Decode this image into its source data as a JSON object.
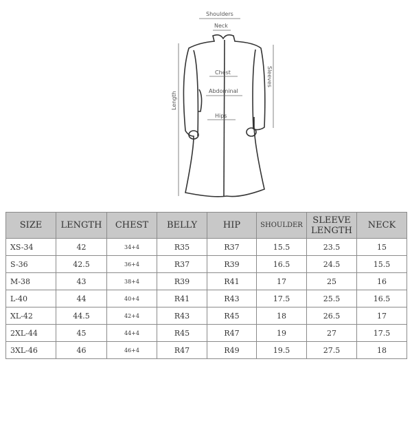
{
  "diagram": {
    "labels": {
      "shoulders": "Shoulders",
      "neck": "Neck",
      "chest": "Chest",
      "abdominal": "Abdominal",
      "hips": "Hips",
      "length": "Length",
      "sleeves": "Sleeves"
    }
  },
  "table": {
    "headers": [
      "SIZE",
      "LENGTH",
      "CHEST",
      "BELLY",
      "HIP",
      "SHOULDER",
      "SLEEVE LENGTH",
      "NECK"
    ],
    "rows": [
      [
        "XS-34",
        "42",
        "34+4",
        "R35",
        "R37",
        "15.5",
        "23.5",
        "15"
      ],
      [
        "S-36",
        "42.5",
        "36+4",
        "R37",
        "R39",
        "16.5",
        "24.5",
        "15.5"
      ],
      [
        "M-38",
        "43",
        "38+4",
        "R39",
        "R41",
        "17",
        "25",
        "16"
      ],
      [
        "L-40",
        "44",
        "40+4",
        "R41",
        "R43",
        "17.5",
        "25.5",
        "16.5"
      ],
      [
        "XL-42",
        "44.5",
        "42+4",
        "R43",
        "R45",
        "18",
        "26.5",
        "17"
      ],
      [
        "2XL-44",
        "45",
        "44+4",
        "R45",
        "R47",
        "19",
        "27",
        "17.5"
      ],
      [
        "3XL-46",
        "46",
        "46+4",
        "R47",
        "R49",
        "19.5",
        "27.5",
        "18"
      ]
    ]
  }
}
